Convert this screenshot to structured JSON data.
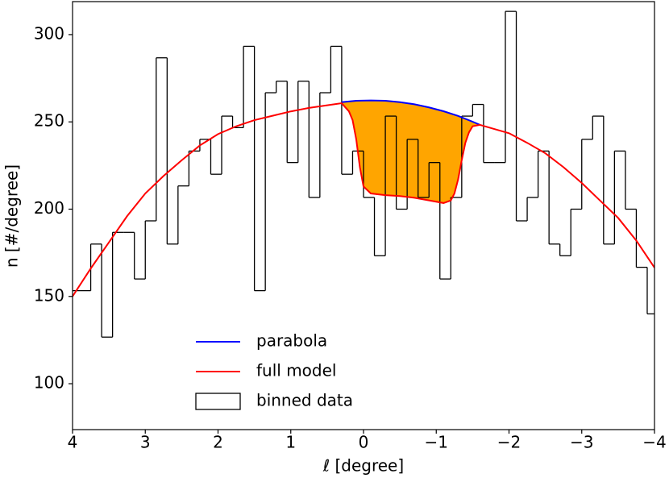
{
  "chart_data": {
    "type": "line",
    "xlabel": "ℓ [degree]",
    "ylabel": "n [#/degree]",
    "xlim": [
      4,
      -4
    ],
    "ylim": [
      73.7,
      318.9
    ],
    "xticks": [
      4,
      3,
      2,
      1,
      0,
      {
        "value": -1,
        "label": "−1"
      },
      {
        "value": -2,
        "label": "−2"
      },
      {
        "value": -3,
        "label": "−3"
      },
      {
        "value": -4,
        "label": "−4"
      }
    ],
    "yticks": [
      100,
      150,
      200,
      250,
      300
    ],
    "legend": "lower center",
    "fill_color": "orange",
    "series": [
      {
        "name": "parabola",
        "color": "blue",
        "x": [
          0.3,
          0.1,
          -0.1,
          -0.3,
          -0.5,
          -0.7,
          -0.9,
          -1.1,
          -1.3,
          -1.5,
          -1.6
        ],
        "values": [
          261.3,
          262.1,
          262.3,
          262.1,
          261.3,
          260.1,
          258.3,
          256.1,
          253.4,
          250.1,
          248.3
        ]
      },
      {
        "name": "full model",
        "color": "red",
        "x": [
          4,
          3.75,
          3.5,
          3.25,
          3,
          2.75,
          2.5,
          2.25,
          2,
          1.75,
          1.5,
          1.25,
          1,
          0.75,
          0.5,
          0.3,
          0.2,
          0.15,
          0.1,
          0.05,
          0,
          -0.1,
          -0.3,
          -0.5,
          -0.7,
          -0.9,
          -1.1,
          -1.2,
          -1.25,
          -1.3,
          -1.35,
          -1.4,
          -1.45,
          -1.5,
          -1.6,
          -1.75,
          -2,
          -2.25,
          -2.5,
          -2.75,
          -3,
          -3.25,
          -3.5,
          -3.75,
          -4
        ],
        "values": [
          150,
          166,
          181,
          196,
          209,
          219,
          228,
          236.5,
          243,
          247.5,
          251,
          253.5,
          256,
          258,
          259.5,
          260.7,
          256,
          251,
          240,
          224,
          213,
          209,
          208,
          207.5,
          206.5,
          205,
          203.5,
          205,
          209,
          217,
          228,
          238,
          244,
          247.5,
          248.3,
          246.5,
          243.5,
          238,
          232,
          224,
          215,
          205,
          195,
          182,
          166.5
        ]
      },
      {
        "name": "binned data",
        "type": "histogram",
        "color": "black",
        "bins": [
          4.05,
          3.9,
          3.75,
          3.6,
          3.45,
          3.3,
          3.15,
          3.0,
          2.85,
          2.7,
          2.55,
          2.4,
          2.25,
          2.1,
          1.95,
          1.8,
          1.65,
          1.5,
          1.35,
          1.2,
          1.05,
          0.9,
          0.75,
          0.6,
          0.45,
          0.3,
          0.15,
          0,
          -0.15,
          -0.3,
          -0.45,
          -0.6,
          -0.75,
          -0.9,
          -1.05,
          -1.2,
          -1.35,
          -1.5,
          -1.65,
          -1.8,
          -1.95,
          -2.1,
          -2.25,
          -2.4,
          -2.55,
          -2.7,
          -2.85,
          -3.0,
          -3.15,
          -3.3,
          -3.45,
          -3.6,
          -3.75,
          -3.9,
          -4.05
        ],
        "values": [
          153.3,
          153.3,
          180,
          126.7,
          186.7,
          186.7,
          160,
          193.3,
          286.7,
          180,
          213.3,
          233.3,
          240,
          220,
          253.3,
          246.7,
          293.3,
          153.3,
          266.7,
          273.3,
          226.7,
          273.3,
          206.7,
          266.7,
          293.3,
          220,
          233.3,
          206.7,
          173.3,
          253.3,
          200,
          240,
          206.7,
          226.7,
          160,
          206.7,
          253.3,
          260,
          226.7,
          226.7,
          313.3,
          193.3,
          206.7,
          233.3,
          180,
          173.3,
          200,
          240,
          253.3,
          180,
          233.3,
          200,
          166.7,
          140
        ]
      }
    ]
  }
}
